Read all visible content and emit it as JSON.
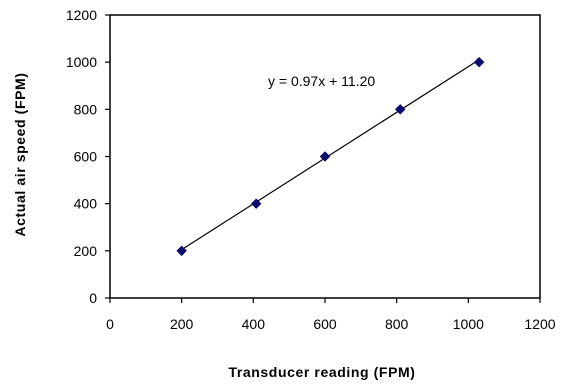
{
  "chart_data": {
    "type": "scatter",
    "title": "",
    "xlabel": "Transducer reading (FPM)",
    "ylabel": "Actual air speed (FPM)",
    "xlim": [
      0,
      1200
    ],
    "ylim": [
      0,
      1200
    ],
    "xticks": [
      0,
      200,
      400,
      600,
      800,
      1000,
      1200
    ],
    "yticks": [
      0,
      200,
      400,
      600,
      800,
      1000,
      1200
    ],
    "grid": false,
    "legend": "none",
    "series": [
      {
        "x": [
          200,
          408,
          600,
          810,
          1030
        ],
        "y": [
          200,
          400,
          600,
          800,
          1000
        ],
        "marker": "diamond",
        "color": "#0a0a6e"
      }
    ],
    "trendline": {
      "slope": 0.97,
      "intercept": 11.2,
      "x_range": [
        200,
        1030
      ],
      "color": "#000000"
    },
    "annotation": "y = 0.97x + 11.20"
  }
}
